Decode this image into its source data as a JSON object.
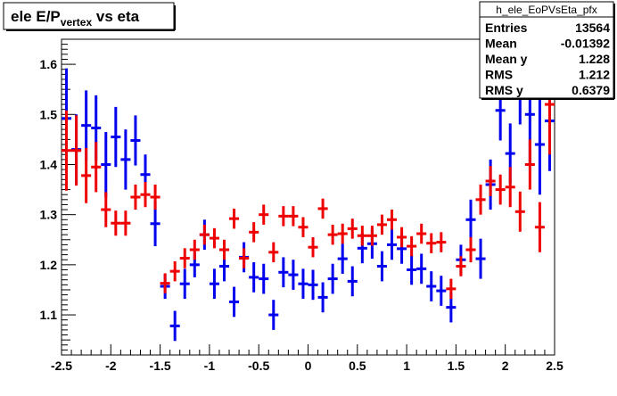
{
  "chart_data": {
    "type": "scatter",
    "title": "ele E/P",
    "title_sub": "vertex",
    "title_suffix": " vs eta",
    "xlabel": "",
    "ylabel": "",
    "xlim": [
      -2.5,
      2.5
    ],
    "ylim": [
      1.02,
      1.65
    ],
    "x_ticks": [
      "-2.5",
      "-2",
      "-1.5",
      "-1",
      "-0.5",
      "0",
      "0.5",
      "1",
      "1.5",
      "2",
      "2.5"
    ],
    "y_ticks": [
      "1.1",
      "1.2",
      "1.3",
      "1.4",
      "1.5",
      "1.6"
    ],
    "grid": false,
    "series": [
      {
        "color": "#0000ee",
        "points": [
          {
            "x": -2.45,
            "y": 1.492,
            "err": 0.1
          },
          {
            "x": -2.35,
            "y": 1.43,
            "err": 0.07
          },
          {
            "x": -2.25,
            "y": 1.478,
            "err": 0.07
          },
          {
            "x": -2.15,
            "y": 1.473,
            "err": 0.065
          },
          {
            "x": -2.05,
            "y": 1.4,
            "err": 0.065
          },
          {
            "x": -1.95,
            "y": 1.455,
            "err": 0.06
          },
          {
            "x": -1.85,
            "y": 1.41,
            "err": 0.06
          },
          {
            "x": -1.75,
            "y": 1.448,
            "err": 0.05
          },
          {
            "x": -1.65,
            "y": 1.38,
            "err": 0.04
          },
          {
            "x": -1.55,
            "y": 1.282,
            "err": 0.045
          },
          {
            "x": -1.45,
            "y": 1.157,
            "err": 0.025
          },
          {
            "x": -1.35,
            "y": 1.078,
            "err": 0.03
          },
          {
            "x": -1.25,
            "y": 1.162,
            "err": 0.03
          },
          {
            "x": -1.15,
            "y": 1.2,
            "err": 0.025
          },
          {
            "x": -1.05,
            "y": 1.26,
            "err": 0.03
          },
          {
            "x": -0.95,
            "y": 1.162,
            "err": 0.03
          },
          {
            "x": -0.85,
            "y": 1.197,
            "err": 0.03
          },
          {
            "x": -0.75,
            "y": 1.126,
            "err": 0.03
          },
          {
            "x": -0.65,
            "y": 1.215,
            "err": 0.03
          },
          {
            "x": -0.55,
            "y": 1.175,
            "err": 0.03
          },
          {
            "x": -0.45,
            "y": 1.172,
            "err": 0.03
          },
          {
            "x": -0.35,
            "y": 1.1,
            "err": 0.03
          },
          {
            "x": -0.25,
            "y": 1.185,
            "err": 0.03
          },
          {
            "x": -0.15,
            "y": 1.18,
            "err": 0.03
          },
          {
            "x": -0.05,
            "y": 1.162,
            "err": 0.03
          },
          {
            "x": 0.05,
            "y": 1.16,
            "err": 0.03
          },
          {
            "x": 0.15,
            "y": 1.135,
            "err": 0.03
          },
          {
            "x": 0.25,
            "y": 1.172,
            "err": 0.03
          },
          {
            "x": 0.35,
            "y": 1.212,
            "err": 0.03
          },
          {
            "x": 0.45,
            "y": 1.167,
            "err": 0.03
          },
          {
            "x": 0.55,
            "y": 1.233,
            "err": 0.03
          },
          {
            "x": 0.65,
            "y": 1.242,
            "err": 0.03
          },
          {
            "x": 0.75,
            "y": 1.197,
            "err": 0.03
          },
          {
            "x": 0.85,
            "y": 1.24,
            "err": 0.03
          },
          {
            "x": 0.95,
            "y": 1.232,
            "err": 0.03
          },
          {
            "x": 1.05,
            "y": 1.19,
            "err": 0.03
          },
          {
            "x": 1.15,
            "y": 1.192,
            "err": 0.03
          },
          {
            "x": 1.25,
            "y": 1.157,
            "err": 0.03
          },
          {
            "x": 1.35,
            "y": 1.148,
            "err": 0.03
          },
          {
            "x": 1.45,
            "y": 1.115,
            "err": 0.03
          },
          {
            "x": 1.55,
            "y": 1.21,
            "err": 0.03
          },
          {
            "x": 1.65,
            "y": 1.29,
            "err": 0.04
          },
          {
            "x": 1.75,
            "y": 1.212,
            "err": 0.04
          },
          {
            "x": 1.85,
            "y": 1.36,
            "err": 0.05
          },
          {
            "x": 1.95,
            "y": 1.508,
            "err": 0.06
          },
          {
            "x": 2.05,
            "y": 1.422,
            "err": 0.06
          },
          {
            "x": 2.15,
            "y": 1.55,
            "err": 0.07
          },
          {
            "x": 2.25,
            "y": 1.5,
            "err": 0.1
          },
          {
            "x": 2.35,
            "y": 1.44,
            "err": 0.1
          },
          {
            "x": 2.45,
            "y": 1.487,
            "err": 0.1
          }
        ]
      },
      {
        "color": "#ee0000",
        "points": [
          {
            "x": -2.45,
            "y": 1.428,
            "err": 0.08
          },
          {
            "x": -2.35,
            "y": 1.428,
            "err": 0.07
          },
          {
            "x": -2.25,
            "y": 1.378,
            "err": 0.055
          },
          {
            "x": -2.15,
            "y": 1.395,
            "err": 0.05
          },
          {
            "x": -2.05,
            "y": 1.31,
            "err": 0.035
          },
          {
            "x": -1.95,
            "y": 1.283,
            "err": 0.025
          },
          {
            "x": -1.85,
            "y": 1.283,
            "err": 0.025
          },
          {
            "x": -1.75,
            "y": 1.335,
            "err": 0.025
          },
          {
            "x": -1.65,
            "y": 1.34,
            "err": 0.025
          },
          {
            "x": -1.55,
            "y": 1.335,
            "err": 0.025
          },
          {
            "x": -1.45,
            "y": 1.163,
            "err": 0.02
          },
          {
            "x": -1.35,
            "y": 1.187,
            "err": 0.02
          },
          {
            "x": -1.25,
            "y": 1.213,
            "err": 0.02
          },
          {
            "x": -1.15,
            "y": 1.23,
            "err": 0.02
          },
          {
            "x": -1.05,
            "y": 1.26,
            "err": 0.02
          },
          {
            "x": -0.95,
            "y": 1.253,
            "err": 0.02
          },
          {
            "x": -0.85,
            "y": 1.23,
            "err": 0.02
          },
          {
            "x": -0.75,
            "y": 1.292,
            "err": 0.02
          },
          {
            "x": -0.65,
            "y": 1.213,
            "err": 0.02
          },
          {
            "x": -0.55,
            "y": 1.265,
            "err": 0.02
          },
          {
            "x": -0.45,
            "y": 1.3,
            "err": 0.02
          },
          {
            "x": -0.35,
            "y": 1.225,
            "err": 0.02
          },
          {
            "x": -0.25,
            "y": 1.297,
            "err": 0.02
          },
          {
            "x": -0.15,
            "y": 1.297,
            "err": 0.02
          },
          {
            "x": -0.05,
            "y": 1.275,
            "err": 0.02
          },
          {
            "x": 0.05,
            "y": 1.235,
            "err": 0.02
          },
          {
            "x": 0.15,
            "y": 1.312,
            "err": 0.02
          },
          {
            "x": 0.25,
            "y": 1.26,
            "err": 0.02
          },
          {
            "x": 0.35,
            "y": 1.262,
            "err": 0.02
          },
          {
            "x": 0.45,
            "y": 1.272,
            "err": 0.02
          },
          {
            "x": 0.55,
            "y": 1.258,
            "err": 0.02
          },
          {
            "x": 0.65,
            "y": 1.258,
            "err": 0.02
          },
          {
            "x": 0.75,
            "y": 1.28,
            "err": 0.02
          },
          {
            "x": 0.85,
            "y": 1.29,
            "err": 0.02
          },
          {
            "x": 0.95,
            "y": 1.255,
            "err": 0.02
          },
          {
            "x": 1.05,
            "y": 1.237,
            "err": 0.02
          },
          {
            "x": 1.15,
            "y": 1.262,
            "err": 0.02
          },
          {
            "x": 1.25,
            "y": 1.243,
            "err": 0.02
          },
          {
            "x": 1.35,
            "y": 1.245,
            "err": 0.02
          },
          {
            "x": 1.45,
            "y": 1.152,
            "err": 0.02
          },
          {
            "x": 1.55,
            "y": 1.197,
            "err": 0.02
          },
          {
            "x": 1.65,
            "y": 1.23,
            "err": 0.025
          },
          {
            "x": 1.75,
            "y": 1.33,
            "err": 0.03
          },
          {
            "x": 1.85,
            "y": 1.367,
            "err": 0.03
          },
          {
            "x": 1.95,
            "y": 1.35,
            "err": 0.03
          },
          {
            "x": 2.05,
            "y": 1.355,
            "err": 0.04
          },
          {
            "x": 2.15,
            "y": 1.306,
            "err": 0.04
          },
          {
            "x": 2.25,
            "y": 1.4,
            "err": 0.05
          },
          {
            "x": 2.35,
            "y": 1.275,
            "err": 0.05
          },
          {
            "x": 2.45,
            "y": 1.52,
            "err": 0.1
          }
        ]
      }
    ]
  },
  "stats_box": {
    "name": "h_ele_EoPVsEta_pfx",
    "rows": [
      {
        "label": "Entries",
        "value": "13564"
      },
      {
        "label": "Mean",
        "value": "-0.01392"
      },
      {
        "label": "Mean y",
        "value": "1.228"
      },
      {
        "label": "RMS",
        "value": "1.212"
      },
      {
        "label": "RMS y",
        "value": "0.6379"
      }
    ]
  }
}
